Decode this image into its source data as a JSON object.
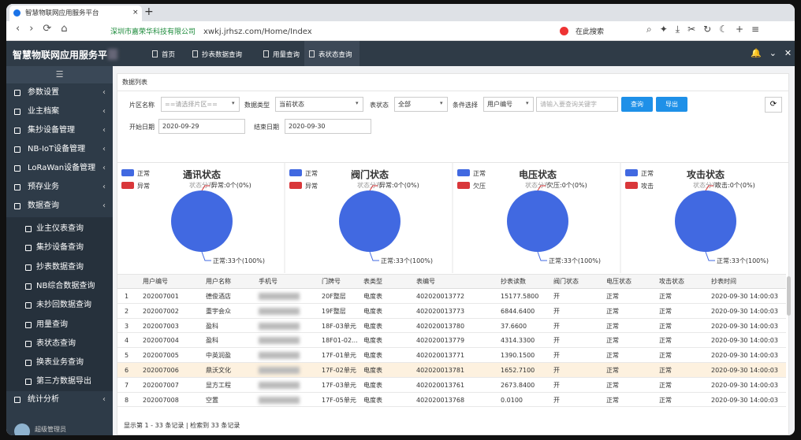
{
  "browser": {
    "tab_title": "智慧物联网应用服务平台",
    "address_company": "深圳市嘉荣华科技有限公司",
    "address_url": "xwkj.jrhsz.com/Home/Index",
    "search_placeholder": "在此搜索"
  },
  "header": {
    "title": "智慧物联网应用服务平",
    "tabs": [
      "首页",
      "抄表数据查询",
      "用量查询",
      "表状态查询"
    ]
  },
  "sidebar": {
    "menu": [
      "参数设置",
      "业主档案",
      "集抄设备管理",
      "NB-IoT设备管理",
      "LoRaWan设备管理",
      "预存业务",
      "数据查询"
    ],
    "submenu": [
      "业主仪表查询",
      "集抄设备查询",
      "抄表数据查询",
      "NB综合数据查询",
      "未抄回数据查询",
      "用量查询",
      "表状态查询",
      "换表业务查询",
      "第三方数据导出"
    ],
    "menu_after": [
      "统计分析"
    ],
    "user": "超级管理员"
  },
  "panel": {
    "title": "数据列表",
    "filters": [
      {
        "label": "片区名称",
        "value": "==请选择片区=="
      },
      {
        "label": "数据类型",
        "value": "当前状态"
      },
      {
        "label": "表状态",
        "value": "全部"
      },
      {
        "label": "条件选择",
        "value": "用户编号"
      }
    ],
    "keyword_placeholder": "请输入要查询关键字",
    "buttons": [
      "查询",
      "导出"
    ],
    "dates": [
      {
        "label": "开始日期",
        "value": "2020-09-29"
      },
      {
        "label": "结束日期",
        "value": "2020-09-30"
      }
    ]
  },
  "chart_data": [
    {
      "type": "pie",
      "title": "通讯状态",
      "subtitle": "状态分布",
      "categories": [
        "正常",
        "异常"
      ],
      "values": [
        33,
        0
      ],
      "value_labels": [
        "正常:33个(100%)",
        "异常:0个(0%)"
      ],
      "colors": [
        "#4169e1",
        "#d9373a"
      ]
    },
    {
      "type": "pie",
      "title": "阀门状态",
      "subtitle": "状态分布",
      "categories": [
        "正常",
        "异常"
      ],
      "values": [
        33,
        0
      ],
      "value_labels": [
        "正常:33个(100%)",
        "异常:0个(0%)"
      ],
      "colors": [
        "#4169e1",
        "#d9373a"
      ]
    },
    {
      "type": "pie",
      "title": "电压状态",
      "subtitle": "状态分布",
      "categories": [
        "正常",
        "欠压"
      ],
      "values": [
        33,
        0
      ],
      "value_labels": [
        "正常:33个(100%)",
        "欠压:0个(0%)"
      ],
      "colors": [
        "#4169e1",
        "#d9373a"
      ]
    },
    {
      "type": "pie",
      "title": "攻击状态",
      "subtitle": "状态分布",
      "categories": [
        "正常",
        "攻击"
      ],
      "values": [
        33,
        0
      ],
      "value_labels": [
        "正常:33个(100%)",
        "攻击:0个(0%)"
      ],
      "colors": [
        "#4169e1",
        "#d9373a"
      ]
    }
  ],
  "table": {
    "columns": [
      "用户编号",
      "用户名称",
      "手机号",
      "门牌号",
      "表类型",
      "表编号",
      "抄表读数",
      "阀门状态",
      "电压状态",
      "攻击状态",
      "抄表时间"
    ],
    "rows": [
      [
        1,
        "202007001",
        "德俊酒店",
        null,
        "20F整层",
        "电度表",
        "402020013772",
        "15177.5800",
        "开",
        "正常",
        "正常",
        "2020-09-30 14:00:03"
      ],
      [
        2,
        "202007002",
        "重宇会众",
        null,
        "19F整层",
        "电度表",
        "402020013773",
        "6844.6400",
        "开",
        "正常",
        "正常",
        "2020-09-30 14:00:03"
      ],
      [
        3,
        "202007003",
        "盈科",
        null,
        "18F-03单元",
        "电度表",
        "402020013780",
        "37.6600",
        "开",
        "正常",
        "正常",
        "2020-09-30 14:00:03"
      ],
      [
        4,
        "202007004",
        "盈科",
        null,
        "18F01-02...",
        "电度表",
        "402020013779",
        "4314.3300",
        "开",
        "正常",
        "正常",
        "2020-09-30 14:00:03"
      ],
      [
        5,
        "202007005",
        "中英润盈",
        null,
        "17F-01单元",
        "电度表",
        "402020013771",
        "1390.1500",
        "开",
        "正常",
        "正常",
        "2020-09-30 14:00:03"
      ],
      [
        6,
        "202007006",
        "鼎沃文化",
        null,
        "17F-02单元",
        "电度表",
        "402020013781",
        "1652.7100",
        "开",
        "正常",
        "正常",
        "2020-09-30 14:00:03"
      ],
      [
        7,
        "202007007",
        "显方工程",
        null,
        "17F-03单元",
        "电度表",
        "402020013761",
        "2673.8400",
        "开",
        "正常",
        "正常",
        "2020-09-30 14:00:03"
      ],
      [
        8,
        "202007008",
        "空置",
        null,
        "17F-05单元",
        "电度表",
        "402020013768",
        "0.0100",
        "开",
        "正常",
        "正常",
        "2020-09-30 14:00:03"
      ]
    ],
    "footer": "显示第 1 - 33 条记录 | 检索到 33 条记录"
  }
}
